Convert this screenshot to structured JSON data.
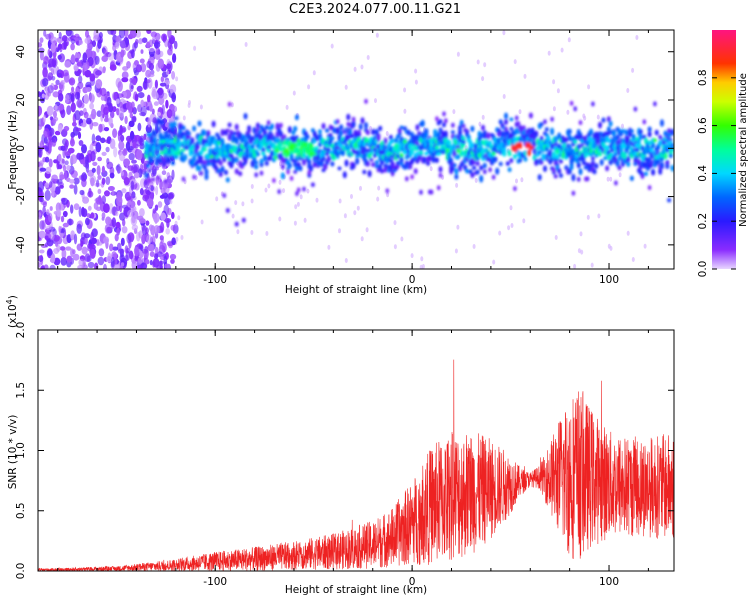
{
  "title": "C2E3.2024.077.00.11.G21",
  "colors": {
    "snr_line": "#ee2222",
    "colorbar": [
      "#7a00ff",
      "#2222ff",
      "#00c8ff",
      "#00ff66",
      "#dddd00",
      "#ff2222",
      "#ff1493"
    ]
  },
  "chart_data": [
    {
      "type": "heatmap",
      "xlabel": "Height of straight line (km)",
      "ylabel": "Frequency (Hz)",
      "xlim": [
        -190,
        133
      ],
      "ylim": [
        -50,
        49
      ],
      "xticks": [
        -100,
        0,
        100
      ],
      "xtick_labels": [
        "-100",
        "0",
        "100"
      ],
      "yticks": [
        -40,
        -20,
        0,
        20,
        40
      ],
      "ytick_labels": [
        "-40",
        "-20",
        "0",
        "20",
        "40"
      ],
      "colorbar": {
        "label": "Normalized spectral amplitude",
        "range": [
          0,
          1
        ],
        "ticks": [
          0.0,
          0.2,
          0.4,
          0.6,
          0.8
        ],
        "tick_labels": [
          "0.0",
          "0.2",
          "0.4",
          "0.6",
          "0.8"
        ]
      },
      "features": {
        "noise_region_km": [
          -190,
          -130
        ],
        "signal_band_center_hz": 0,
        "signal_band_halfwidth_hz": 8,
        "peak_km": [
          50,
          62
        ],
        "peak_amplitude": 0.95
      }
    },
    {
      "type": "line",
      "xlabel": "Height of straight line (km)",
      "ylabel": "SNR (10 * v/v)",
      "y_multiplier_label": "(x10",
      "y_multiplier_exp": "4",
      "y_multiplier_close": ")",
      "xlim": [
        -190,
        133
      ],
      "ylim": [
        0,
        2.0
      ],
      "xticks": [
        -100,
        0,
        100
      ],
      "xtick_labels": [
        "-100",
        "0",
        "100"
      ],
      "yticks": [
        0.0,
        0.5,
        1.0,
        1.5,
        2.0
      ],
      "ytick_labels": [
        "0.0",
        "0.5",
        "1.0",
        "1.5",
        "2.0"
      ],
      "envelope": {
        "x": [
          -190,
          -150,
          -120,
          -100,
          -80,
          -60,
          -40,
          -20,
          -10,
          0,
          10,
          20,
          30,
          40,
          50,
          55,
          60,
          65,
          70,
          75,
          80,
          85,
          90,
          100,
          110,
          120,
          133
        ],
        "mean": [
          0.01,
          0.02,
          0.05,
          0.08,
          0.1,
          0.13,
          0.16,
          0.22,
          0.28,
          0.4,
          0.55,
          0.62,
          0.65,
          0.68,
          0.72,
          0.74,
          0.76,
          0.78,
          0.78,
          0.78,
          0.8,
          0.8,
          0.78,
          0.72,
          0.7,
          0.7,
          0.7
        ],
        "spread": [
          0.01,
          0.02,
          0.05,
          0.08,
          0.1,
          0.12,
          0.15,
          0.2,
          0.25,
          0.35,
          0.5,
          0.55,
          0.52,
          0.42,
          0.25,
          0.12,
          0.06,
          0.1,
          0.3,
          0.5,
          0.7,
          0.72,
          0.6,
          0.45,
          0.42,
          0.42,
          0.45
        ]
      }
    }
  ]
}
